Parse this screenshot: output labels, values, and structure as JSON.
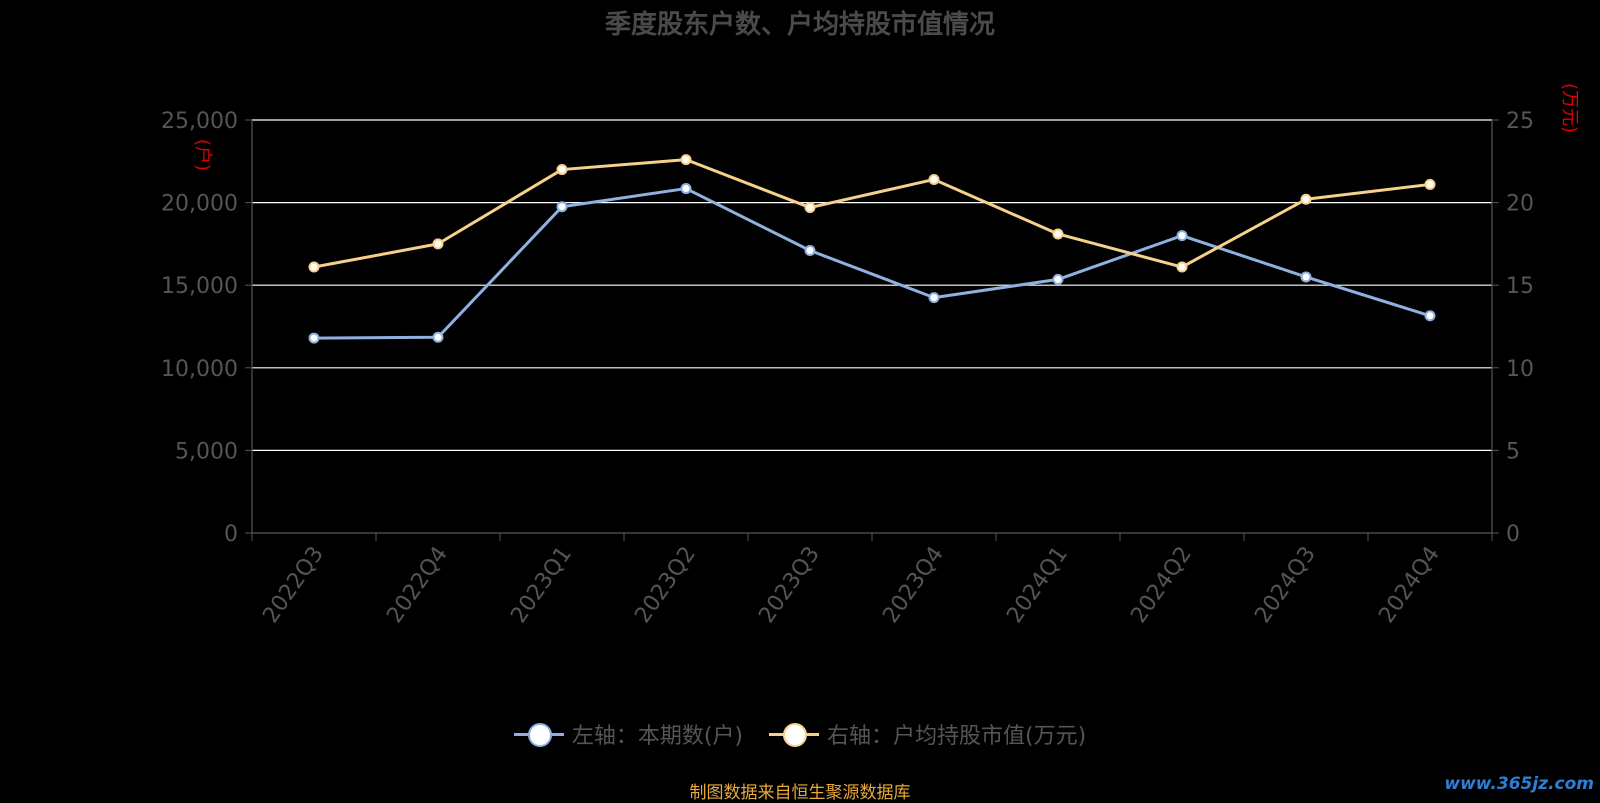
{
  "chart_data": {
    "type": "line",
    "title": "季度股东户数、户均持股市值情况",
    "categories": [
      "2022Q3",
      "2022Q4",
      "2023Q1",
      "2023Q2",
      "2023Q3",
      "2023Q4",
      "2024Q1",
      "2024Q2",
      "2024Q3",
      "2024Q4"
    ],
    "left_axis": {
      "label": "(户)",
      "ylim": [
        0,
        25000
      ],
      "ticks": [
        "0",
        "5,000",
        "10,000",
        "15,000",
        "20,000",
        "25,000"
      ],
      "tick_values": [
        0,
        5000,
        10000,
        15000,
        20000,
        25000
      ]
    },
    "right_axis": {
      "label": "(万元)",
      "ylim": [
        0,
        25
      ],
      "ticks": [
        "0",
        "5",
        "10",
        "15",
        "20",
        "25"
      ],
      "tick_values": [
        0,
        5,
        10,
        15,
        20,
        25
      ]
    },
    "series": [
      {
        "name": "左轴：本期数(户)",
        "axis": "left",
        "color": "#8fb0e0",
        "values": [
          11800,
          11850,
          19750,
          20850,
          17100,
          14250,
          15350,
          18000,
          15500,
          13150
        ]
      },
      {
        "name": "右轴：户均持股市值(万元)",
        "axis": "right",
        "color": "#f7d08a",
        "values": [
          16.1,
          17.5,
          22.0,
          22.6,
          19.7,
          21.4,
          18.1,
          16.1,
          20.2,
          21.1
        ]
      }
    ],
    "grid": true,
    "legend_position": "bottom"
  },
  "footer": {
    "source": "制图数据来自恒生聚源数据库",
    "watermark": "www.365jz.com"
  },
  "colors": {
    "axis_label": "#e00000",
    "tick": "#555555",
    "grid": "#ffffff"
  }
}
